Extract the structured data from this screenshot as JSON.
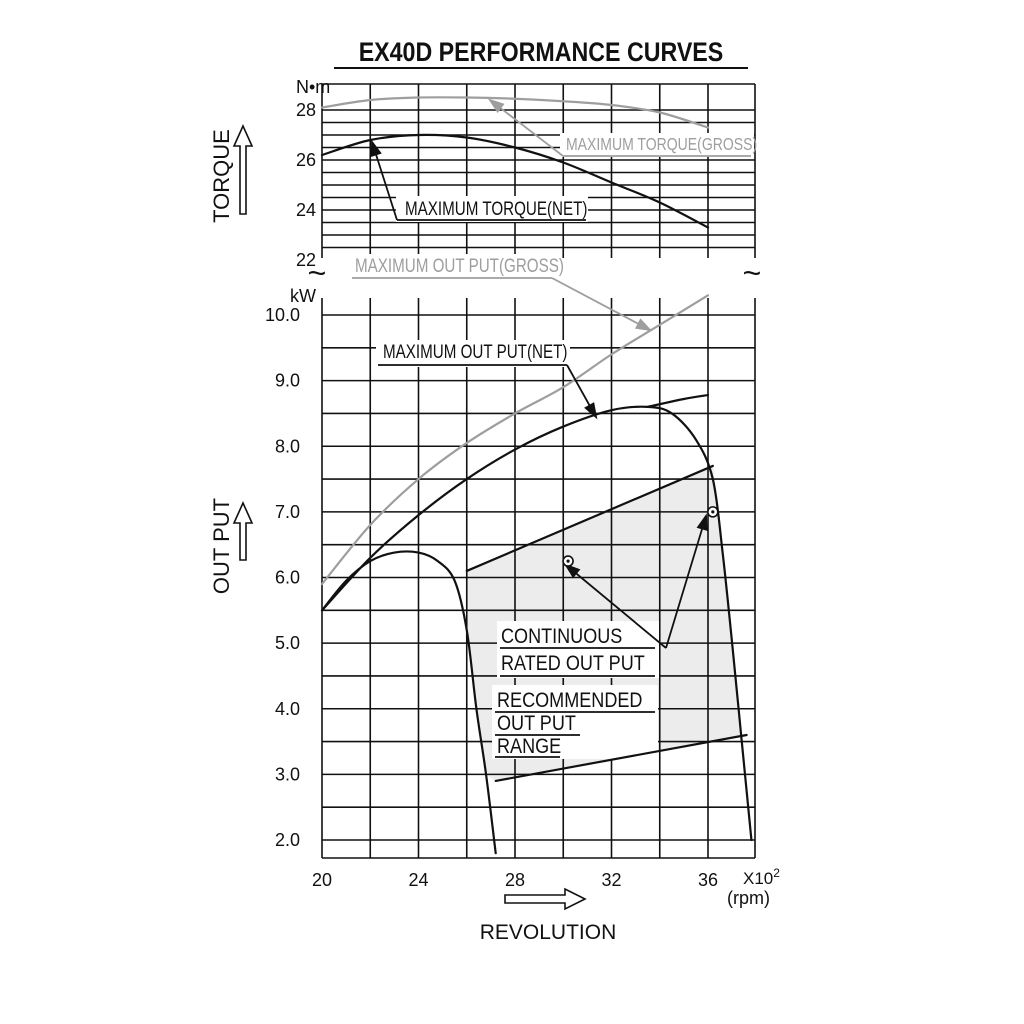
{
  "chart_data": {
    "type": "line",
    "title": "EX40D  PERFORMANCE  CURVES",
    "xlabel": "REVOLUTION",
    "x_unit_multiplier": "X10",
    "x_unit_exponent": "2",
    "x_unit": "(rpm)",
    "x_ticks": [
      20,
      24,
      28,
      32,
      36
    ],
    "xlim": [
      20,
      38
    ],
    "torque_axis": {
      "label": "TORQUE",
      "unit": "N•m",
      "ticks": [
        "28",
        "26",
        "24",
        "22"
      ],
      "ylim": [
        22,
        28.5
      ]
    },
    "output_axis": {
      "label": "OUT PUT",
      "unit": "kW",
      "ticks": [
        "10.0",
        "9.0",
        "8.0",
        "7.0",
        "6.0",
        "5.0",
        "4.0",
        "3.0",
        "2.0"
      ],
      "ylim": [
        2.0,
        10.0
      ]
    },
    "series": [
      {
        "name": "MAXIMUM TORQUE(GROSS)",
        "axis": "torque",
        "color": "#9e9e9e",
        "x": [
          20,
          22,
          24,
          26,
          28,
          30,
          32,
          34,
          36
        ],
        "y": [
          28.1,
          28.4,
          28.5,
          28.5,
          28.45,
          28.35,
          28.2,
          27.9,
          27.3
        ]
      },
      {
        "name": "MAXIMUM TORQUE(NET)",
        "axis": "torque",
        "color": "#111111",
        "x": [
          20,
          22,
          24,
          26,
          28,
          30,
          32,
          34,
          36
        ],
        "y": [
          26.2,
          26.8,
          27.0,
          26.9,
          26.5,
          25.9,
          25.1,
          24.3,
          23.3
        ]
      },
      {
        "name": "MAXIMUM OUT PUT(GROSS)",
        "axis": "output",
        "color": "#9e9e9e",
        "x": [
          20,
          22,
          24,
          26,
          28,
          30,
          32,
          34,
          36
        ],
        "y": [
          5.9,
          6.8,
          7.5,
          8.05,
          8.5,
          8.9,
          9.4,
          9.85,
          10.3
        ]
      },
      {
        "name": "MAXIMUM OUT PUT(NET)",
        "axis": "output",
        "color": "#111111",
        "x": [
          20,
          22,
          24,
          26,
          28,
          30,
          32,
          33.5,
          34.5,
          35.5,
          36.2,
          36.6,
          37.0,
          37.4,
          37.8
        ],
        "y": [
          5.5,
          6.3,
          6.95,
          7.5,
          7.95,
          8.3,
          8.55,
          8.6,
          8.5,
          8.1,
          7.5,
          6.4,
          5.0,
          3.5,
          2.0
        ]
      },
      {
        "name": "MAXIMUM OUT PUT(NET) continuation",
        "axis": "output",
        "color": "#111111",
        "x": [
          33.5,
          35,
          36
        ],
        "y": [
          8.6,
          8.72,
          8.78
        ]
      },
      {
        "name": "Low speed limit curve",
        "axis": "output",
        "color": "#111111",
        "x": [
          20,
          21,
          22,
          23,
          24,
          24.8,
          25.5,
          26.0,
          26.4,
          26.8,
          27.2
        ],
        "y": [
          5.5,
          5.95,
          6.25,
          6.38,
          6.38,
          6.25,
          5.95,
          5.2,
          4.0,
          3.0,
          1.8
        ]
      },
      {
        "name": "Recommended range upper line",
        "axis": "output",
        "color": "#111111",
        "x": [
          26,
          36.2
        ],
        "y": [
          6.1,
          7.7
        ]
      },
      {
        "name": "Recommended range lower line",
        "axis": "output",
        "color": "#111111",
        "x": [
          27.2,
          37.6
        ],
        "y": [
          2.9,
          3.6
        ]
      }
    ],
    "markers": [
      {
        "x": 30.2,
        "y": 6.25
      },
      {
        "x": 36.2,
        "y": 7.0
      }
    ],
    "annotations": {
      "max_torque_gross": "MAXIMUM TORQUE(GROSS)",
      "max_torque_net": "MAXIMUM TORQUE(NET)",
      "max_output_gross": "MAXIMUM OUT PUT(GROSS)",
      "max_output_net": "MAXIMUM OUT PUT(NET)",
      "continuous_1": "CONTINUOUS",
      "continuous_2": "RATED OUT PUT",
      "recommended_1": "RECOMMENDED",
      "recommended_2": "OUT PUT",
      "recommended_3": "RANGE"
    },
    "break_symbol": "~",
    "grid": true
  }
}
